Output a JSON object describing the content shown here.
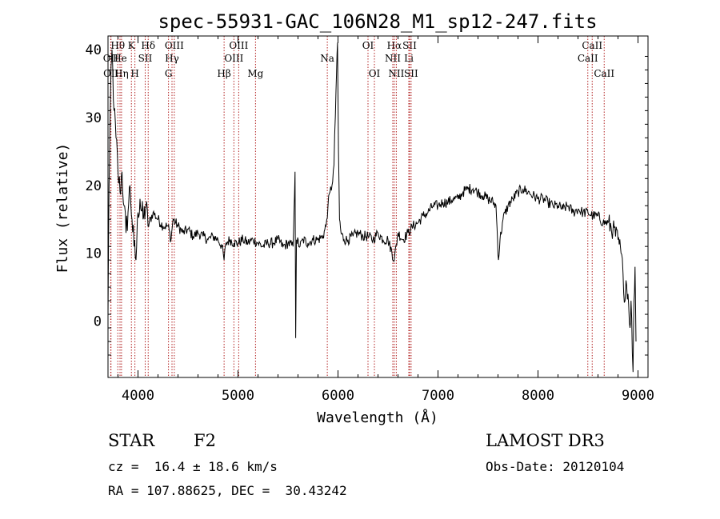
{
  "chart_data": {
    "type": "line",
    "title": "spec-55931-GAC_106N28_M1_sp12-247.fits",
    "xlabel": "Wavelength (Å)",
    "ylabel": "Flux (relative)",
    "xlim": [
      3700,
      9100
    ],
    "ylim": [
      -8.3,
      42
    ],
    "xticks": [
      4000,
      5000,
      6000,
      7000,
      8000,
      9000
    ],
    "yticks": [
      0,
      10,
      20,
      30,
      40
    ],
    "series": [
      {
        "name": "flux",
        "points": [
          [
            3700,
            0.5
          ],
          [
            3710,
            20
          ],
          [
            3725,
            33
          ],
          [
            3740,
            40
          ],
          [
            3760,
            31
          ],
          [
            3780,
            27
          ],
          [
            3800,
            22
          ],
          [
            3820,
            19
          ],
          [
            3840,
            22
          ],
          [
            3860,
            17
          ],
          [
            3880,
            13
          ],
          [
            3900,
            16
          ],
          [
            3920,
            20
          ],
          [
            3940,
            15
          ],
          [
            3960,
            11
          ],
          [
            3980,
            9
          ],
          [
            4000,
            16
          ],
          [
            4020,
            18
          ],
          [
            4050,
            15
          ],
          [
            4080,
            17
          ],
          [
            4100,
            14
          ],
          [
            4150,
            16
          ],
          [
            4200,
            15
          ],
          [
            4250,
            14
          ],
          [
            4300,
            14
          ],
          [
            4330,
            12
          ],
          [
            4350,
            15
          ],
          [
            4400,
            14
          ],
          [
            4450,
            13
          ],
          [
            4500,
            13.5
          ],
          [
            4550,
            12.5
          ],
          [
            4600,
            13
          ],
          [
            4650,
            12.5
          ],
          [
            4700,
            12
          ],
          [
            4750,
            12.5
          ],
          [
            4800,
            12
          ],
          [
            4840,
            11
          ],
          [
            4861,
            9
          ],
          [
            4880,
            11.5
          ],
          [
            4920,
            12
          ],
          [
            4960,
            11.5
          ],
          [
            5000,
            11.5
          ],
          [
            5050,
            12
          ],
          [
            5100,
            11.5
          ],
          [
            5150,
            12
          ],
          [
            5200,
            11.5
          ],
          [
            5250,
            11
          ],
          [
            5300,
            11.5
          ],
          [
            5350,
            11.5
          ],
          [
            5400,
            12
          ],
          [
            5450,
            11
          ],
          [
            5500,
            11.5
          ],
          [
            5550,
            11
          ],
          [
            5560,
            16
          ],
          [
            5570,
            22
          ],
          [
            5577,
            -2.5
          ],
          [
            5585,
            12
          ],
          [
            5620,
            11
          ],
          [
            5650,
            12
          ],
          [
            5700,
            11.5
          ],
          [
            5750,
            12
          ],
          [
            5800,
            12
          ],
          [
            5850,
            12.5
          ],
          [
            5880,
            14
          ],
          [
            5900,
            17
          ],
          [
            5920,
            19
          ],
          [
            5940,
            20
          ],
          [
            5960,
            23
          ],
          [
            5980,
            34
          ],
          [
            5995,
            41
          ],
          [
            6005,
            25
          ],
          [
            6015,
            15
          ],
          [
            6030,
            13
          ],
          [
            6060,
            12
          ],
          [
            6100,
            12
          ],
          [
            6150,
            12.5
          ],
          [
            6200,
            13
          ],
          [
            6250,
            12.5
          ],
          [
            6300,
            12.5
          ],
          [
            6350,
            12
          ],
          [
            6400,
            13
          ],
          [
            6450,
            12
          ],
          [
            6500,
            12
          ],
          [
            6563,
            9
          ],
          [
            6600,
            13
          ],
          [
            6650,
            12
          ],
          [
            6700,
            13
          ],
          [
            6750,
            14
          ],
          [
            6800,
            14.5
          ],
          [
            6850,
            15.5
          ],
          [
            6900,
            16
          ],
          [
            6950,
            17
          ],
          [
            7000,
            17
          ],
          [
            7050,
            17.5
          ],
          [
            7100,
            17.5
          ],
          [
            7150,
            18
          ],
          [
            7200,
            18
          ],
          [
            7250,
            19
          ],
          [
            7300,
            19.5
          ],
          [
            7350,
            19.5
          ],
          [
            7400,
            19
          ],
          [
            7450,
            18.5
          ],
          [
            7500,
            18
          ],
          [
            7550,
            17.5
          ],
          [
            7580,
            17
          ],
          [
            7595,
            12
          ],
          [
            7605,
            9
          ],
          [
            7620,
            12
          ],
          [
            7650,
            15
          ],
          [
            7700,
            17
          ],
          [
            7750,
            18
          ],
          [
            7800,
            19
          ],
          [
            7850,
            19.5
          ],
          [
            7900,
            19
          ],
          [
            7950,
            18.5
          ],
          [
            8000,
            18
          ],
          [
            8050,
            18
          ],
          [
            8100,
            17.5
          ],
          [
            8150,
            17
          ],
          [
            8200,
            17
          ],
          [
            8250,
            16.5
          ],
          [
            8300,
            17
          ],
          [
            8350,
            16
          ],
          [
            8400,
            16.5
          ],
          [
            8450,
            16
          ],
          [
            8500,
            16
          ],
          [
            8550,
            15.5
          ],
          [
            8600,
            15.5
          ],
          [
            8650,
            14.5
          ],
          [
            8700,
            14.5
          ],
          [
            8750,
            13.5
          ],
          [
            8800,
            12
          ],
          [
            8830,
            10
          ],
          [
            8850,
            7
          ],
          [
            8870,
            3
          ],
          [
            8880,
            6
          ],
          [
            8900,
            4
          ],
          [
            8920,
            -1
          ],
          [
            8930,
            3
          ],
          [
            8950,
            -7.5
          ],
          [
            8960,
            3
          ],
          [
            8970,
            8
          ],
          [
            8980,
            -3
          ]
        ]
      }
    ],
    "line_markers": [
      {
        "label": "Hθ",
        "wavelength": 3798,
        "row": 1
      },
      {
        "label": "OII",
        "wavelength": 3727,
        "row": 2
      },
      {
        "label": "OII",
        "wavelength": 3730,
        "row": 3
      },
      {
        "label": "He",
        "wavelength": 3820,
        "row": 2
      },
      {
        "label": "Hη",
        "wavelength": 3835,
        "row": 3
      },
      {
        "label": "K",
        "wavelength": 3934,
        "row": 1
      },
      {
        "label": "H",
        "wavelength": 3969,
        "row": 3
      },
      {
        "label": "SII",
        "wavelength": 4072,
        "row": 2
      },
      {
        "label": "Hδ",
        "wavelength": 4102,
        "row": 1
      },
      {
        "label": "OIII",
        "wavelength": 4363,
        "row": 1
      },
      {
        "label": "Hγ",
        "wavelength": 4340,
        "row": 2
      },
      {
        "label": "G",
        "wavelength": 4305,
        "row": 3
      },
      {
        "label": "OIII",
        "wavelength": 5007,
        "row": 1
      },
      {
        "label": "OIII",
        "wavelength": 4959,
        "row": 2
      },
      {
        "label": "Hβ",
        "wavelength": 4861,
        "row": 3
      },
      {
        "label": "Mg",
        "wavelength": 5175,
        "row": 3
      },
      {
        "label": "Na",
        "wavelength": 5893,
        "row": 2
      },
      {
        "label": "OI",
        "wavelength": 6300,
        "row": 1
      },
      {
        "label": "OI",
        "wavelength": 6364,
        "row": 3
      },
      {
        "label": "Hα",
        "wavelength": 6563,
        "row": 1
      },
      {
        "label": "NII",
        "wavelength": 6548,
        "row": 2
      },
      {
        "label": "NII",
        "wavelength": 6583,
        "row": 3
      },
      {
        "label": "SII",
        "wavelength": 6716,
        "row": 1
      },
      {
        "label": "Li",
        "wavelength": 6708,
        "row": 2
      },
      {
        "label": "SII",
        "wavelength": 6731,
        "row": 3
      },
      {
        "label": "CaII",
        "wavelength": 8542,
        "row": 1
      },
      {
        "label": "CaII",
        "wavelength": 8498,
        "row": 2
      },
      {
        "label": "CaII",
        "wavelength": 8662,
        "row": 3
      }
    ]
  },
  "info": {
    "object_class": "STAR",
    "subclass": "F2",
    "survey": "LAMOST DR3",
    "redshift": "cz =  16.4 ± 18.6 km/s",
    "obs_date": "Obs-Date: 20120104",
    "coordinates": "RA = 107.88625, DEC =  30.43242"
  },
  "colors": {
    "line_marker": "#b22222",
    "spectrum": "#000000",
    "axes": "#000000"
  }
}
